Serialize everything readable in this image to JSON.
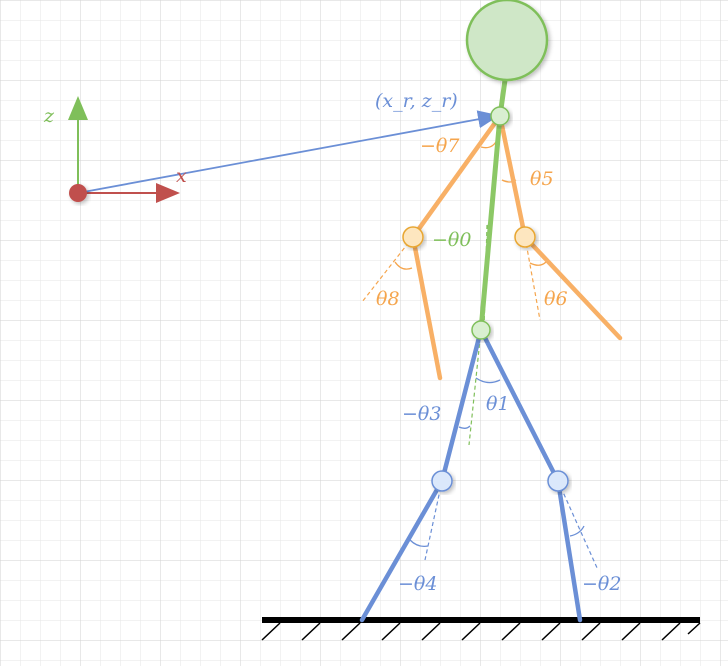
{
  "diagram": {
    "axes": {
      "z_label": "z",
      "x_label": "x"
    },
    "position_label": "(x_r, z_r)",
    "angles": {
      "theta0": "−θ0",
      "theta1": "θ1",
      "theta2": "−θ2",
      "theta3": "−θ3",
      "theta4": "−θ4",
      "theta5": "θ5",
      "theta6": "θ6",
      "theta7": "−θ7",
      "theta8": "θ8"
    },
    "colors": {
      "torso": "#8cc866",
      "arms": "#f5a54d",
      "legs": "#6b8fd6",
      "origin": "#c0504d",
      "ground": "#000000",
      "grid": "#dcdcdc"
    }
  }
}
